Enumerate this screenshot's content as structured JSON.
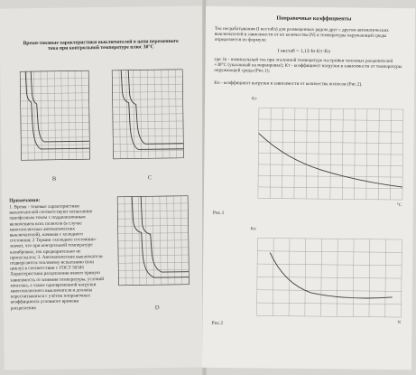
{
  "left_page": {
    "title": "Время-токовые характеристики выключателей в цепи переменного тока при контрольной температуре плюс 30°С",
    "charts": [
      {
        "label": "B"
      },
      {
        "label": "C"
      },
      {
        "label": "D"
      }
    ],
    "notes_heading": "Примечания:",
    "notes_text": "1. Время - токовые характеристики выключателей соответствуют испытанию однофазным током с поддиапазонным включением всех полюсов (в случае многополюсных автоматических выключателей), начиная с холодного состояния; 2 Термин «холодное состояние» значит, что при контрольной температуре калибровки, ток предварительно не пропускался; 3. Автоматические выключатели подвергаются тепловому испытанию (или циклу) в соответствии с ГОСТ 50345 Характеристики расцепления имеют прямую зависимость от влияния температуры, условий монтажа, а также одновременной нагрузки многополюсного выключателя и должны пересчитываться с учётом поправочных коэффициента условного времени расцепления"
  },
  "right_page": {
    "title": "Поправочные коэффициенты",
    "intro": "Ток несрабатывания (I нестабл) для размещенных рядом друг с другом автоматических выключателей в зависимости от их количества (N) и температуры окружающей среды определяется по формуле:",
    "formula": "I нестаб = 1,13·In·Kт·Kn",
    "definitions": "где: In - номинальный ток при эталонной температуре настройки тепловых расцепителей +30°С (указанный на маркировке); Kт - коэффициент нагрузки в зависимости от температуры окружающей среды (Рис.1);",
    "def2": "Kn - коэффициент нагрузки в зависимости от количества полюсов (Рис.2).",
    "fig1": {
      "label": "Рис.1",
      "ylabel": "Kт",
      "xlabel": "°C"
    },
    "fig2": {
      "label": "Рис.2",
      "ylabel": "Kn",
      "xlabel": "N"
    }
  }
}
